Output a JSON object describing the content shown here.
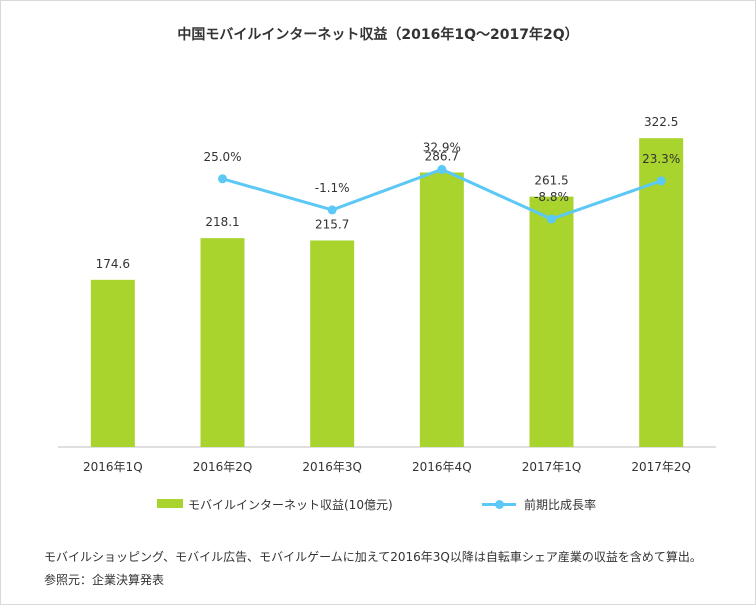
{
  "chart_data": {
    "type": "bar+line",
    "title": "中国モバイルインターネット収益（2016年1Q～2017年2Q）",
    "categories": [
      "2016年1Q",
      "2016年2Q",
      "2016年3Q",
      "2016年4Q",
      "2017年1Q",
      "2017年2Q"
    ],
    "series": [
      {
        "name": "モバイルインターネット収益(10億元)",
        "type": "bar",
        "values": [
          174.6,
          218.1,
          215.7,
          286.7,
          261.5,
          322.5
        ],
        "labels": [
          "174.6",
          "218.1",
          "215.7",
          "286.7",
          "261.5",
          "322.5"
        ],
        "color": "#a8d42d"
      },
      {
        "name": "前期比成長率",
        "type": "line",
        "values": [
          null,
          25.0,
          -1.1,
          32.9,
          -8.8,
          23.3
        ],
        "labels": [
          "",
          "25.0%",
          "-1.1%",
          "32.9%",
          "-8.8%",
          "23.3%"
        ],
        "color": "#5bc8f5"
      }
    ],
    "bar_axis_range": [
      0,
      400
    ],
    "line_axis_range": [
      -60,
      150
    ],
    "grid": false,
    "legend_position": "bottom"
  },
  "notes": [
    "モバイルショッピング、モバイル広告、モバイルゲームに加えて2016年3Q以降は自転車シェア産業の収益を含めて算出。",
    "参照元：企業決算発表"
  ]
}
